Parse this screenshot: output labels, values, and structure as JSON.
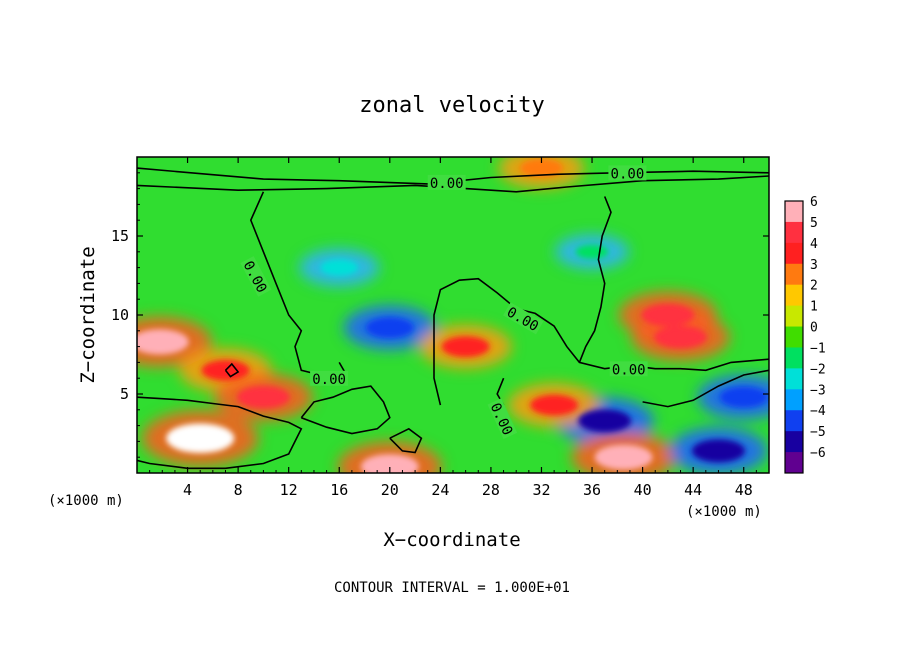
{
  "chart_data": {
    "type": "heatmap",
    "title": "zonal velocity",
    "xlabel": "X−coordinate",
    "ylabel": "Z−coordinate",
    "x_unit_left": "(×1000 m)",
    "x_unit_right": "(×1000 m)",
    "xlim": [
      0,
      50
    ],
    "ylim": [
      0,
      20
    ],
    "x_ticks": [
      {
        "value": 4,
        "label": "4"
      },
      {
        "value": 8,
        "label": "8"
      },
      {
        "value": 12,
        "label": "12"
      },
      {
        "value": 16,
        "label": "16"
      },
      {
        "value": 20,
        "label": "20"
      },
      {
        "value": 24,
        "label": "24"
      },
      {
        "value": 28,
        "label": "28"
      },
      {
        "value": 32,
        "label": "32"
      },
      {
        "value": 36,
        "label": "36"
      },
      {
        "value": 40,
        "label": "40"
      },
      {
        "value": 44,
        "label": "44"
      },
      {
        "value": 48,
        "label": "48"
      }
    ],
    "y_ticks": [
      {
        "value": 5,
        "label": "5"
      },
      {
        "value": 10,
        "label": "10"
      },
      {
        "value": 15,
        "label": "15"
      }
    ],
    "colorbar": {
      "levels": [
        6,
        5,
        4,
        3,
        2,
        1,
        0,
        -1,
        -2,
        -3,
        -4,
        -5,
        -6
      ],
      "labels": [
        "6",
        "5",
        "4",
        "3",
        "2",
        "1",
        "0",
        "−1",
        "−2",
        "−3",
        "−4",
        "−5",
        "−6"
      ],
      "colors": [
        "#ffb0b8",
        "#ff3040",
        "#ff2020",
        "#ff7a10",
        "#ffc800",
        "#c8e800",
        "#40dd00",
        "#00e060",
        "#00e0d8",
        "#00a0ff",
        "#1040f0",
        "#1800a0",
        "#600090"
      ]
    },
    "features": [
      {
        "x": 5,
        "z": 2.2,
        "value": 8
      },
      {
        "x": 1.8,
        "z": 8.3,
        "value": 6
      },
      {
        "x": 7,
        "z": 6.5,
        "value": 4
      },
      {
        "x": 10,
        "z": 4.8,
        "value": 5
      },
      {
        "x": 20,
        "z": 9.2,
        "value": -4
      },
      {
        "x": 16,
        "z": 13,
        "value": -2
      },
      {
        "x": 26,
        "z": 8,
        "value": 4
      },
      {
        "x": 20,
        "z": 0.4,
        "value": 6
      },
      {
        "x": 37,
        "z": 3.3,
        "value": -5
      },
      {
        "x": 42,
        "z": 10,
        "value": 5
      },
      {
        "x": 43,
        "z": 8.6,
        "value": 5
      },
      {
        "x": 38.5,
        "z": 1,
        "value": 6
      },
      {
        "x": 46,
        "z": 1.4,
        "value": -5
      },
      {
        "x": 48,
        "z": 4.8,
        "value": -4
      },
      {
        "x": 33,
        "z": 4.3,
        "value": 4
      },
      {
        "x": 36,
        "z": 14,
        "value": -1
      },
      {
        "x": 32,
        "z": 19.3,
        "value": 3
      }
    ],
    "contours": [
      {
        "label": "0.00",
        "points": [
          [
            0,
            19.3
          ],
          [
            10,
            18.6
          ],
          [
            16,
            18.5
          ],
          [
            23,
            18.3
          ],
          [
            28,
            18.7
          ],
          [
            33,
            18.9
          ],
          [
            38,
            19.0
          ],
          [
            44,
            19.1
          ],
          [
            50,
            19.0
          ]
        ]
      },
      {
        "label": "0.00",
        "points": [
          [
            0,
            18.2
          ],
          [
            8,
            17.9
          ],
          [
            15,
            18.0
          ],
          [
            22,
            18.2
          ],
          [
            26,
            18.0
          ],
          [
            30,
            17.8
          ],
          [
            34,
            18.1
          ],
          [
            40,
            18.5
          ],
          [
            46,
            18.6
          ],
          [
            50,
            18.8
          ]
        ]
      },
      {
        "label": "0.00",
        "points": [
          [
            10,
            17.8
          ],
          [
            9,
            16
          ],
          [
            10,
            14
          ],
          [
            11,
            12
          ],
          [
            12,
            10
          ],
          [
            13,
            9
          ],
          [
            12.5,
            8
          ],
          [
            13,
            6.5
          ],
          [
            14.5,
            6.2
          ],
          [
            15.5,
            5.8
          ],
          [
            16.5,
            6.3
          ],
          [
            16,
            7
          ]
        ]
      },
      {
        "label": "0.00",
        "points": [
          [
            24,
            4.3
          ],
          [
            23.5,
            6
          ],
          [
            23.5,
            8
          ],
          [
            23.5,
            10
          ],
          [
            24,
            11.6
          ],
          [
            25.5,
            12.2
          ],
          [
            27,
            12.3
          ],
          [
            28.5,
            11.4
          ],
          [
            30,
            10.4
          ],
          [
            31.5,
            10.1
          ],
          [
            33,
            9.3
          ],
          [
            34,
            8
          ],
          [
            35,
            7
          ],
          [
            37,
            6.6
          ],
          [
            39,
            6.8
          ],
          [
            41,
            6.6
          ],
          [
            43,
            6.6
          ],
          [
            45,
            6.5
          ],
          [
            47,
            7.0
          ],
          [
            50,
            7.2
          ]
        ]
      },
      {
        "label": "0.00",
        "points": [
          [
            29,
            4.3
          ],
          [
            28.5,
            5
          ],
          [
            29,
            6
          ]
        ]
      },
      {
        "label": "",
        "points": [
          [
            37,
            17.5
          ],
          [
            37.5,
            16.5
          ],
          [
            36.8,
            15
          ],
          [
            36.5,
            13.5
          ],
          [
            37,
            12
          ],
          [
            36.7,
            10.5
          ],
          [
            36.2,
            9
          ],
          [
            35.5,
            8
          ],
          [
            35,
            7
          ]
        ]
      },
      {
        "label": "",
        "points": [
          [
            0,
            4.8
          ],
          [
            2,
            4.7
          ],
          [
            4,
            4.6
          ],
          [
            6,
            4.4
          ],
          [
            8,
            4.2
          ],
          [
            10,
            3.6
          ],
          [
            12,
            3.2
          ],
          [
            13,
            2.8
          ],
          [
            12.5,
            2
          ],
          [
            12,
            1.2
          ],
          [
            10,
            0.6
          ],
          [
            7,
            0.3
          ],
          [
            4,
            0.3
          ],
          [
            1,
            0.6
          ],
          [
            0,
            0.8
          ]
        ]
      },
      {
        "label": "",
        "points": [
          [
            13,
            3.5
          ],
          [
            14,
            4.5
          ],
          [
            15.5,
            4.8
          ],
          [
            17,
            5.3
          ],
          [
            18.5,
            5.5
          ],
          [
            19.5,
            4.5
          ],
          [
            20,
            3.5
          ],
          [
            19,
            2.8
          ],
          [
            17,
            2.5
          ],
          [
            15,
            2.9
          ],
          [
            13,
            3.5
          ]
        ]
      },
      {
        "label": "",
        "points": [
          [
            40,
            4.5
          ],
          [
            42,
            4.2
          ],
          [
            44,
            4.6
          ],
          [
            46,
            5.5
          ],
          [
            48,
            6.2
          ],
          [
            50,
            6.5
          ]
        ]
      },
      {
        "label": "",
        "points": [
          [
            20,
            2.2
          ],
          [
            21,
            1.4
          ],
          [
            22,
            1.3
          ],
          [
            22.5,
            2.2
          ],
          [
            21.5,
            2.8
          ],
          [
            20,
            2.2
          ]
        ]
      },
      {
        "label": "",
        "points": [
          [
            7,
            6.5
          ],
          [
            7.5,
            6.9
          ],
          [
            8,
            6.4
          ],
          [
            7.4,
            6.1
          ],
          [
            7,
            6.5
          ]
        ]
      }
    ],
    "contour_labels": [
      {
        "text": "0.00",
        "x": 38.8,
        "z": 18.9
      },
      {
        "text": "0.00",
        "x": 24.5,
        "z": 18.3
      },
      {
        "text": "0.00",
        "x": 9.3,
        "z": 12.4,
        "rotate": 62
      },
      {
        "text": "0.00",
        "x": 30.5,
        "z": 9.7,
        "rotate": 30
      },
      {
        "text": "0.00",
        "x": 38.9,
        "z": 6.5
      },
      {
        "text": "0.00",
        "x": 28.8,
        "z": 3.4,
        "rotate": 65
      },
      {
        "text": "0.00",
        "x": 15.2,
        "z": 5.9
      }
    ],
    "annotation": "CONTOUR INTERVAL = 1.000E+01"
  }
}
